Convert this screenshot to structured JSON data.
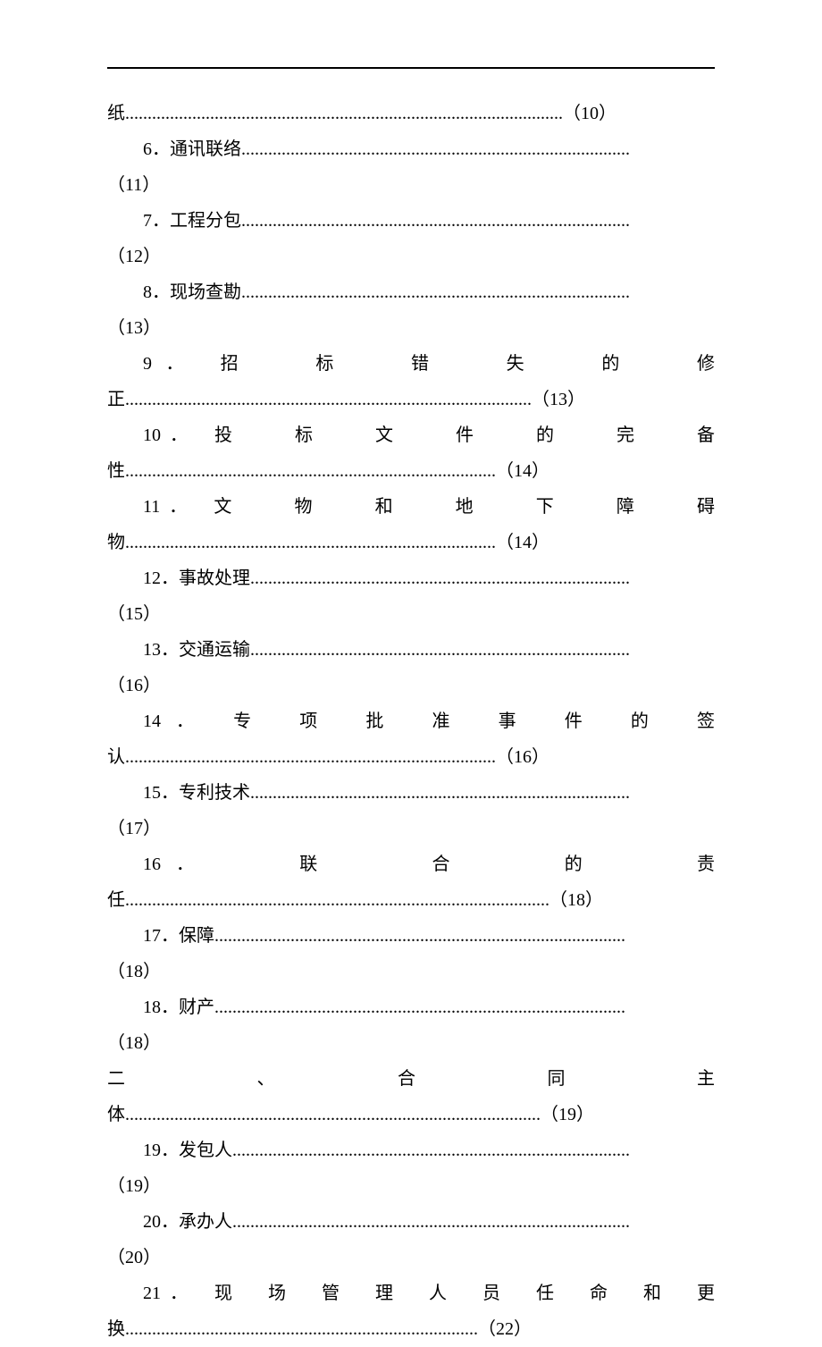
{
  "toc": {
    "line_cont_5": "纸..................................................................................................（10）",
    "item6_a": "6．通讯联络.......................................................................................",
    "item6_b": "（11）",
    "item7_a": "7．工程分包.......................................................................................",
    "item7_b": "（12）",
    "item8_a": "8．现场查勘.......................................................................................",
    "item8_b": "（13）",
    "item9_a": "9．　招　　标　　错　　失　　的　　修",
    "item9_b": "正...........................................................................................（13）",
    "item10_a": "10．　投　　标　　文　　件　　的　　完　　备",
    "item10_b": "性...................................................................................（14）",
    "item11_a": "11．　文　　物　　和　　地　　下　　障　　碍",
    "item11_b": "物...................................................................................（14）",
    "item12_a": "12．事故处理.....................................................................................",
    "item12_b": "（15）",
    "item13_a": "13．交通运输.....................................................................................",
    "item13_b": "（16）",
    "item14_a": "14．　专　项　批　准　事　件　的　签",
    "item14_b": "认...................................................................................（16）",
    "item15_a": "15．专利技术.....................................................................................",
    "item15_b": "（17）",
    "item16_a": "16．　　　联　　　合　　　的　　　责",
    "item16_b": "任...............................................................................................（18）",
    "item17_a": "17．保障............................................................................................",
    "item17_b": "（18）",
    "item18_a": "18．财产............................................................................................",
    "item18_b": "（18）",
    "section2_a": "二　　　、　　　合　　　同　　　主",
    "section2_b": "体.............................................................................................（19）",
    "item19_a": "19．发包人.........................................................................................",
    "item19_b": "（19）",
    "item20_a": "20．承办人.........................................................................................",
    "item20_b": "（20）",
    "item21_a": "21．　现　场　管　理　人　员　任　命　和　更",
    "item21_b": "换...............................................................................（22）"
  }
}
